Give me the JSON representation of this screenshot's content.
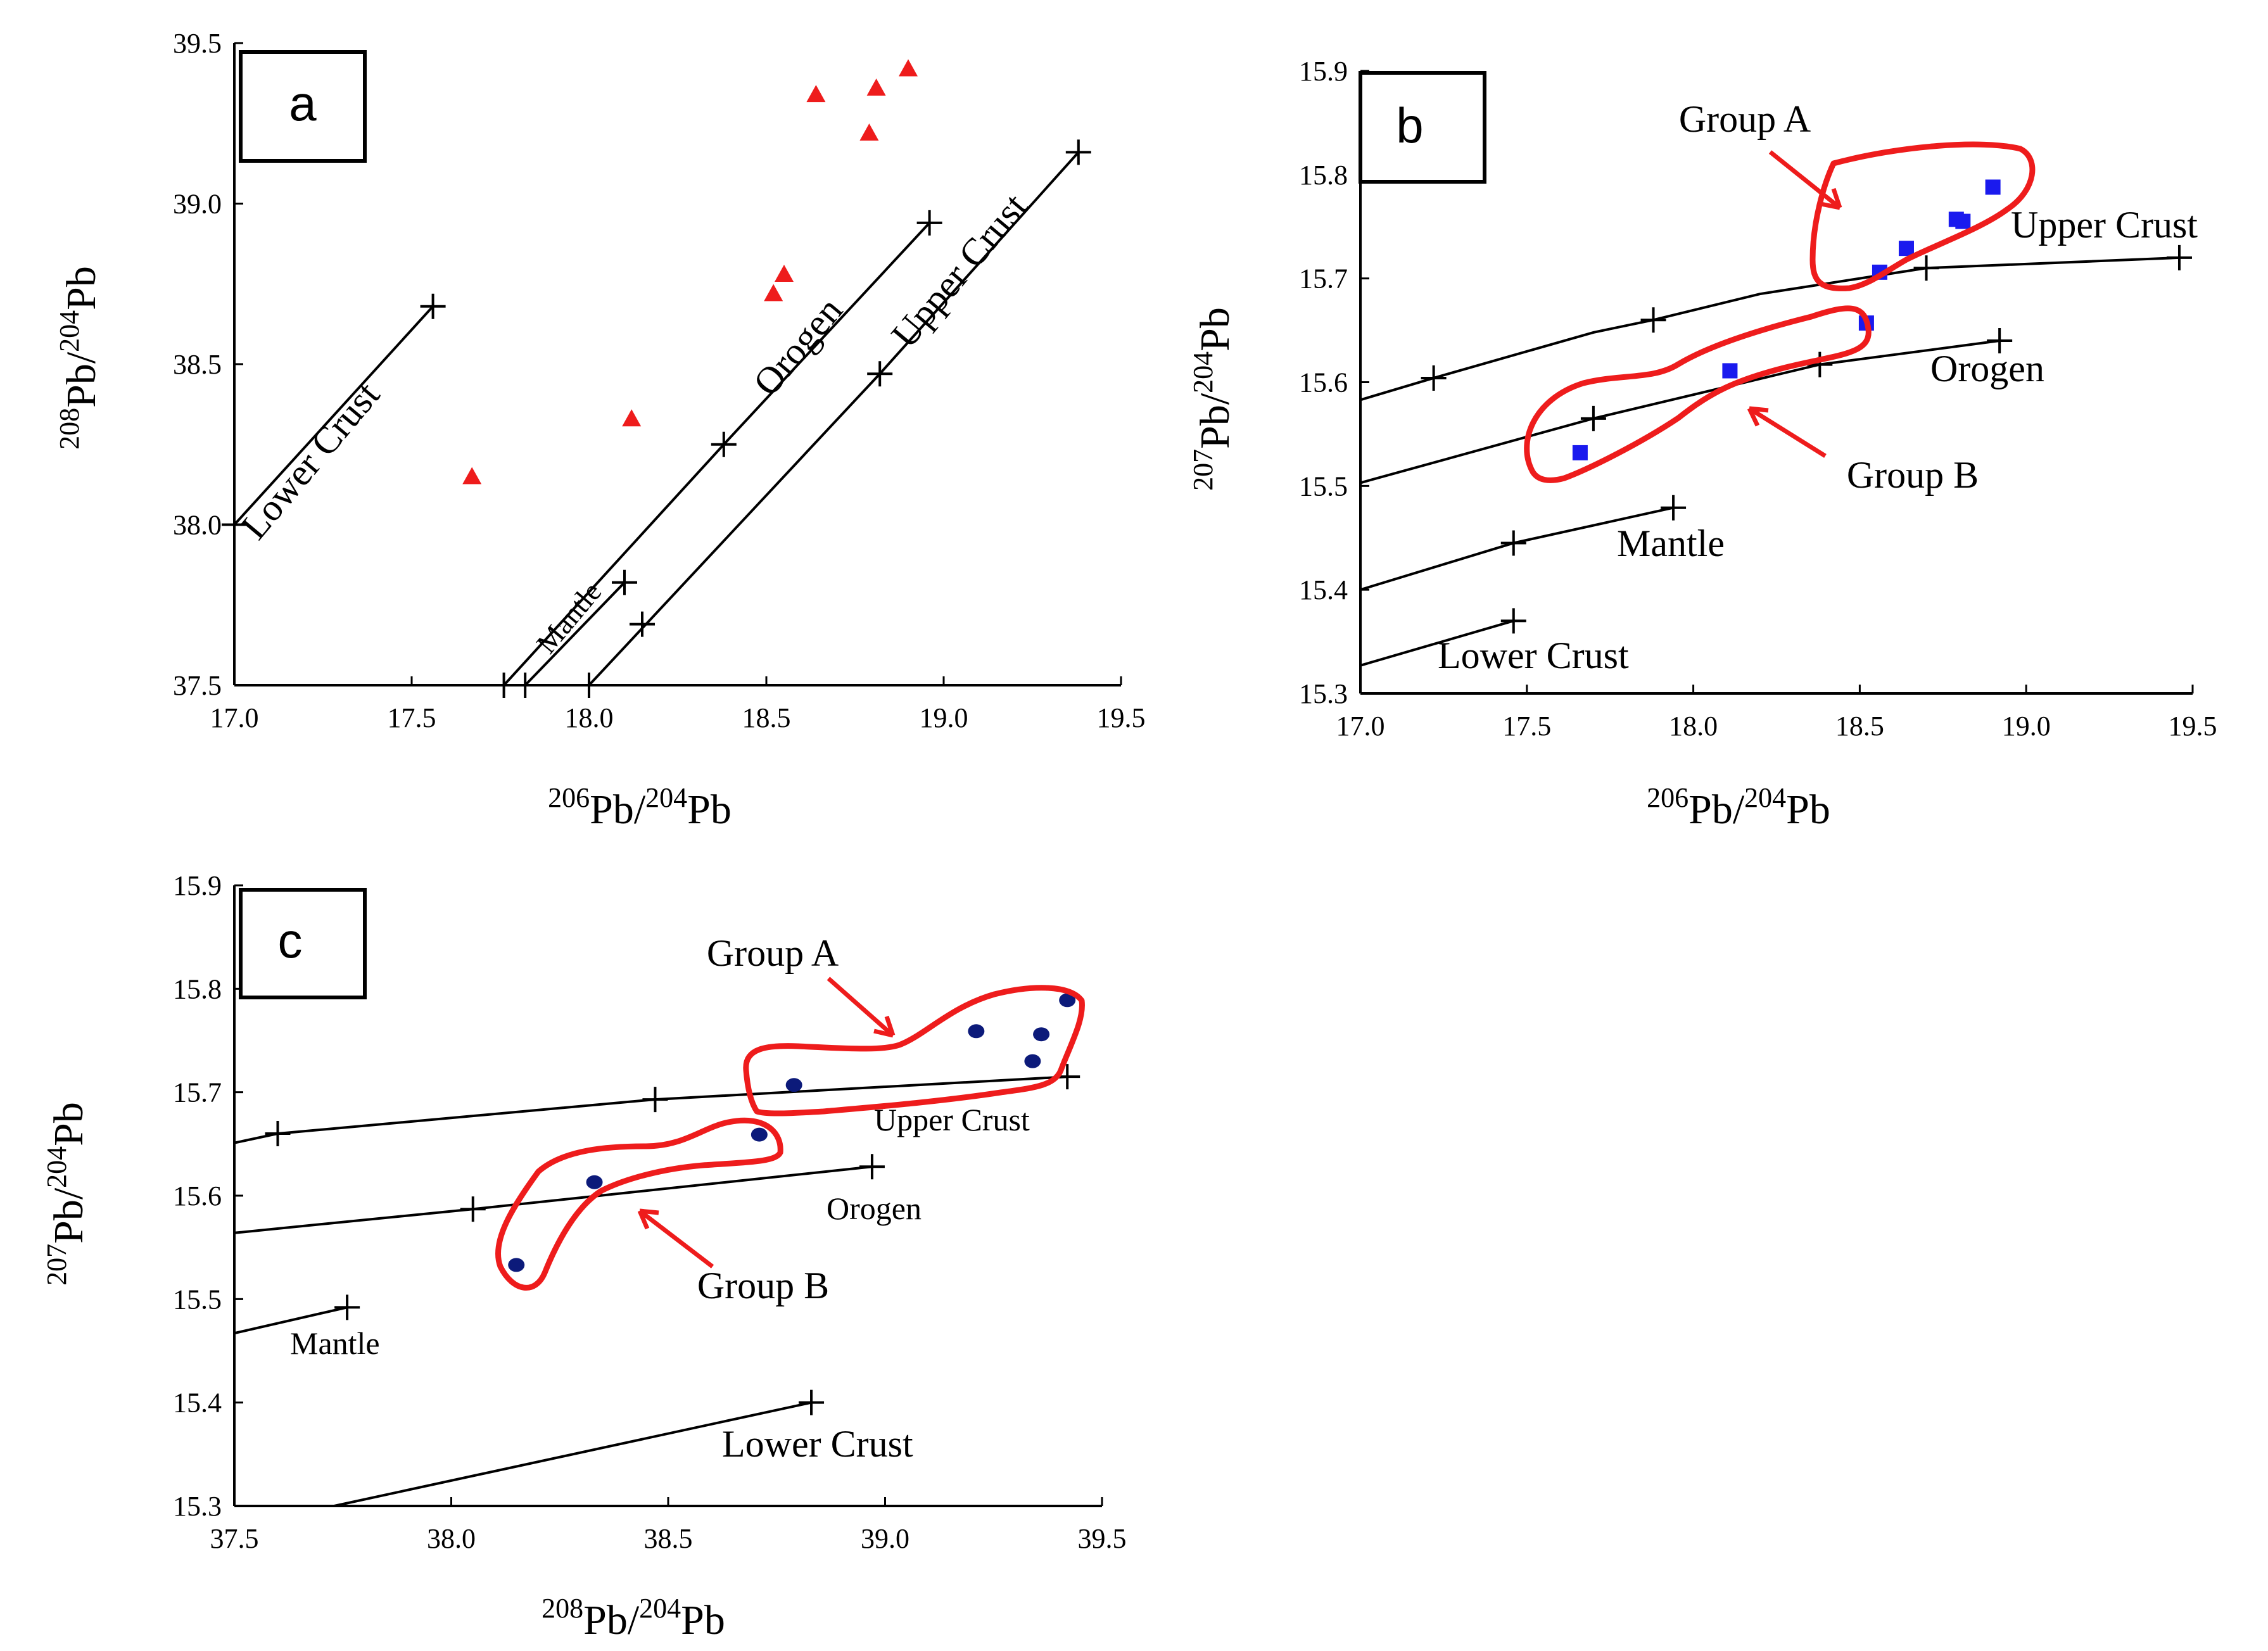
{
  "figure": {
    "colors": {
      "axis": "#000000",
      "curve": "#000000",
      "triangle": "#ee1c1c",
      "square": "#1a1aee",
      "dot": "#0c1a7a",
      "group": "#ee1c1c"
    }
  },
  "chart_data": [
    {
      "type": "scatter",
      "panel": "a",
      "title": "",
      "xlabel": "206Pb/204Pb",
      "ylabel": "208Pb/204Pb",
      "xlim": [
        17.0,
        19.5
      ],
      "ylim": [
        37.5,
        39.5
      ],
      "xticks": [
        "17.0",
        "17.5",
        "18.0",
        "18.5",
        "19.0",
        "19.5"
      ],
      "yticks": [
        "37.5",
        "38.0",
        "38.5",
        "39.0",
        "39.5"
      ],
      "grid": false,
      "curves": [
        {
          "name": "Lower Crust",
          "x": [
            17.0,
            17.56
          ],
          "y": [
            38.0,
            38.68
          ],
          "ticks": [
            [
              17.0,
              38.0
            ],
            [
              17.56,
              38.68
            ]
          ]
        },
        {
          "name": "Orogen",
          "x": [
            17.76,
            18.38,
            18.96
          ],
          "y": [
            37.5,
            38.25,
            38.94
          ],
          "ticks": [
            [
              17.76,
              37.5
            ],
            [
              18.38,
              38.25
            ],
            [
              18.96,
              38.94
            ]
          ]
        },
        {
          "name": "Upper Crust",
          "x": [
            18.0,
            18.82,
            19.38
          ],
          "y": [
            37.5,
            38.47,
            39.16
          ],
          "ticks": [
            [
              18.0,
              37.5
            ],
            [
              18.15,
              37.69
            ],
            [
              18.82,
              38.47
            ],
            [
              19.38,
              39.16
            ]
          ]
        },
        {
          "name": "Mantle",
          "x": [
            17.82,
            18.1
          ],
          "y": [
            37.5,
            37.82
          ],
          "ticks": [
            [
              17.82,
              37.5
            ],
            [
              18.1,
              37.82
            ]
          ]
        }
      ],
      "series": [
        {
          "name": "samples",
          "marker": "triangle",
          "x": [
            17.67,
            18.12,
            18.52,
            18.55,
            18.64,
            18.79,
            18.81,
            18.9
          ],
          "y": [
            38.15,
            38.33,
            38.72,
            38.78,
            39.34,
            39.22,
            39.36,
            39.42
          ]
        }
      ]
    },
    {
      "type": "scatter",
      "panel": "b",
      "title": "",
      "xlabel": "206Pb/204Pb",
      "ylabel": "207Pb/204Pb",
      "xlim": [
        17.0,
        19.5
      ],
      "ylim": [
        15.3,
        15.9
      ],
      "xticks": [
        "17.0",
        "17.5",
        "18.0",
        "18.5",
        "19.0",
        "19.5"
      ],
      "yticks": [
        "15.3",
        "15.4",
        "15.5",
        "15.6",
        "15.7",
        "15.8",
        "15.9"
      ],
      "grid": false,
      "curves": [
        {
          "name": "Upper Crust",
          "x": [
            17.0,
            17.22,
            17.7,
            17.88,
            18.2,
            18.7,
            19.46
          ],
          "y": [
            15.583,
            15.604,
            15.648,
            15.66,
            15.685,
            15.71,
            15.72
          ],
          "ticks": [
            [
              17.22,
              15.604
            ],
            [
              17.88,
              15.66
            ],
            [
              18.7,
              15.71
            ],
            [
              19.46,
              15.72
            ]
          ]
        },
        {
          "name": "Orogen",
          "x": [
            17.0,
            17.7,
            18.38,
            18.92
          ],
          "y": [
            15.503,
            15.565,
            15.617,
            15.64
          ],
          "ticks": [
            [
              17.7,
              15.565
            ],
            [
              18.38,
              15.617
            ],
            [
              18.92,
              15.64
            ]
          ]
        },
        {
          "name": "Mantle",
          "x": [
            17.0,
            17.46,
            17.94
          ],
          "y": [
            15.4,
            15.445,
            15.479
          ],
          "ticks": [
            [
              17.46,
              15.445
            ],
            [
              17.94,
              15.479
            ]
          ]
        },
        {
          "name": "Lower Crust",
          "x": [
            17.0,
            17.46
          ],
          "y": [
            15.327,
            15.37
          ],
          "ticks": [
            [
              17.46,
              15.37
            ]
          ]
        }
      ],
      "series": [
        {
          "name": "samples",
          "marker": "square",
          "x": [
            17.66,
            18.11,
            18.52,
            18.56,
            18.64,
            18.79,
            18.81,
            18.9
          ],
          "y": [
            15.532,
            15.611,
            15.657,
            15.706,
            15.729,
            15.757,
            15.755,
            15.788
          ]
        }
      ],
      "groups": [
        {
          "name": "Group A",
          "label": "Group A"
        },
        {
          "name": "Group B",
          "label": "Group B"
        }
      ]
    },
    {
      "type": "scatter",
      "panel": "c",
      "title": "",
      "xlabel": "208Pb/204Pb",
      "ylabel": "207Pb/204Pb",
      "xlim": [
        37.5,
        39.5
      ],
      "ylim": [
        15.3,
        15.9
      ],
      "xticks": [
        "37.5",
        "38.0",
        "38.5",
        "39.0",
        "39.5"
      ],
      "yticks": [
        "15.3",
        "15.4",
        "15.5",
        "15.6",
        "15.7",
        "15.8",
        "15.9"
      ],
      "grid": false,
      "curves": [
        {
          "name": "Upper Crust",
          "x": [
            37.5,
            37.6,
            38.47,
            39.42
          ],
          "y": [
            15.651,
            15.66,
            15.693,
            15.715
          ],
          "ticks": [
            [
              37.6,
              15.66
            ],
            [
              38.47,
              15.693
            ],
            [
              39.42,
              15.715
            ]
          ]
        },
        {
          "name": "Orogen",
          "x": [
            37.5,
            38.05,
            38.97
          ],
          "y": [
            15.564,
            15.587,
            15.628
          ],
          "ticks": [
            [
              38.05,
              15.587
            ],
            [
              38.97,
              15.628
            ]
          ]
        },
        {
          "name": "Mantle",
          "x": [
            37.5,
            37.76
          ],
          "y": [
            15.467,
            15.492
          ],
          "ticks": [
            [
              37.76,
              15.492
            ]
          ]
        },
        {
          "name": "Lower Crust",
          "x": [
            37.73,
            38.83
          ],
          "y": [
            15.3,
            15.4
          ],
          "ticks": [
            [
              38.83,
              15.4
            ]
          ]
        }
      ],
      "series": [
        {
          "name": "samples",
          "marker": "circle",
          "x": [
            38.15,
            38.33,
            38.71,
            38.79,
            39.21,
            39.36,
            39.34,
            39.42
          ],
          "y": [
            15.533,
            15.613,
            15.659,
            15.707,
            15.759,
            15.756,
            15.73,
            15.789
          ]
        }
      ],
      "groups": [
        {
          "name": "Group A",
          "label": "Group A"
        },
        {
          "name": "Group B",
          "label": "Group B"
        }
      ]
    }
  ]
}
